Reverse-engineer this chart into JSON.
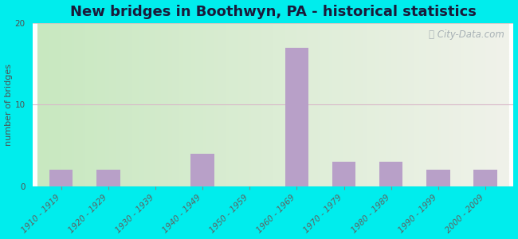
{
  "title": "New bridges in Boothwyn, PA - historical statistics",
  "categories": [
    "1910 - 1919",
    "1920 - 1929",
    "1930 - 1939",
    "1940 - 1949",
    "1950 - 1959",
    "1960 - 1969",
    "1970 - 1979",
    "1980 - 1989",
    "1990 - 1999",
    "2000 - 2009"
  ],
  "values": [
    2,
    2,
    0,
    4,
    0,
    17,
    3,
    3,
    2,
    2
  ],
  "bar_color": "#b8a0c8",
  "ylabel": "number of bridges",
  "ylim": [
    0,
    20
  ],
  "yticks": [
    0,
    10,
    20
  ],
  "background_outer": "#00eded",
  "grid_color": "#e8c8d8",
  "title_fontsize": 13,
  "axis_label_fontsize": 8,
  "tick_label_fontsize": 7.5,
  "watermark_text": "City-Data.com"
}
